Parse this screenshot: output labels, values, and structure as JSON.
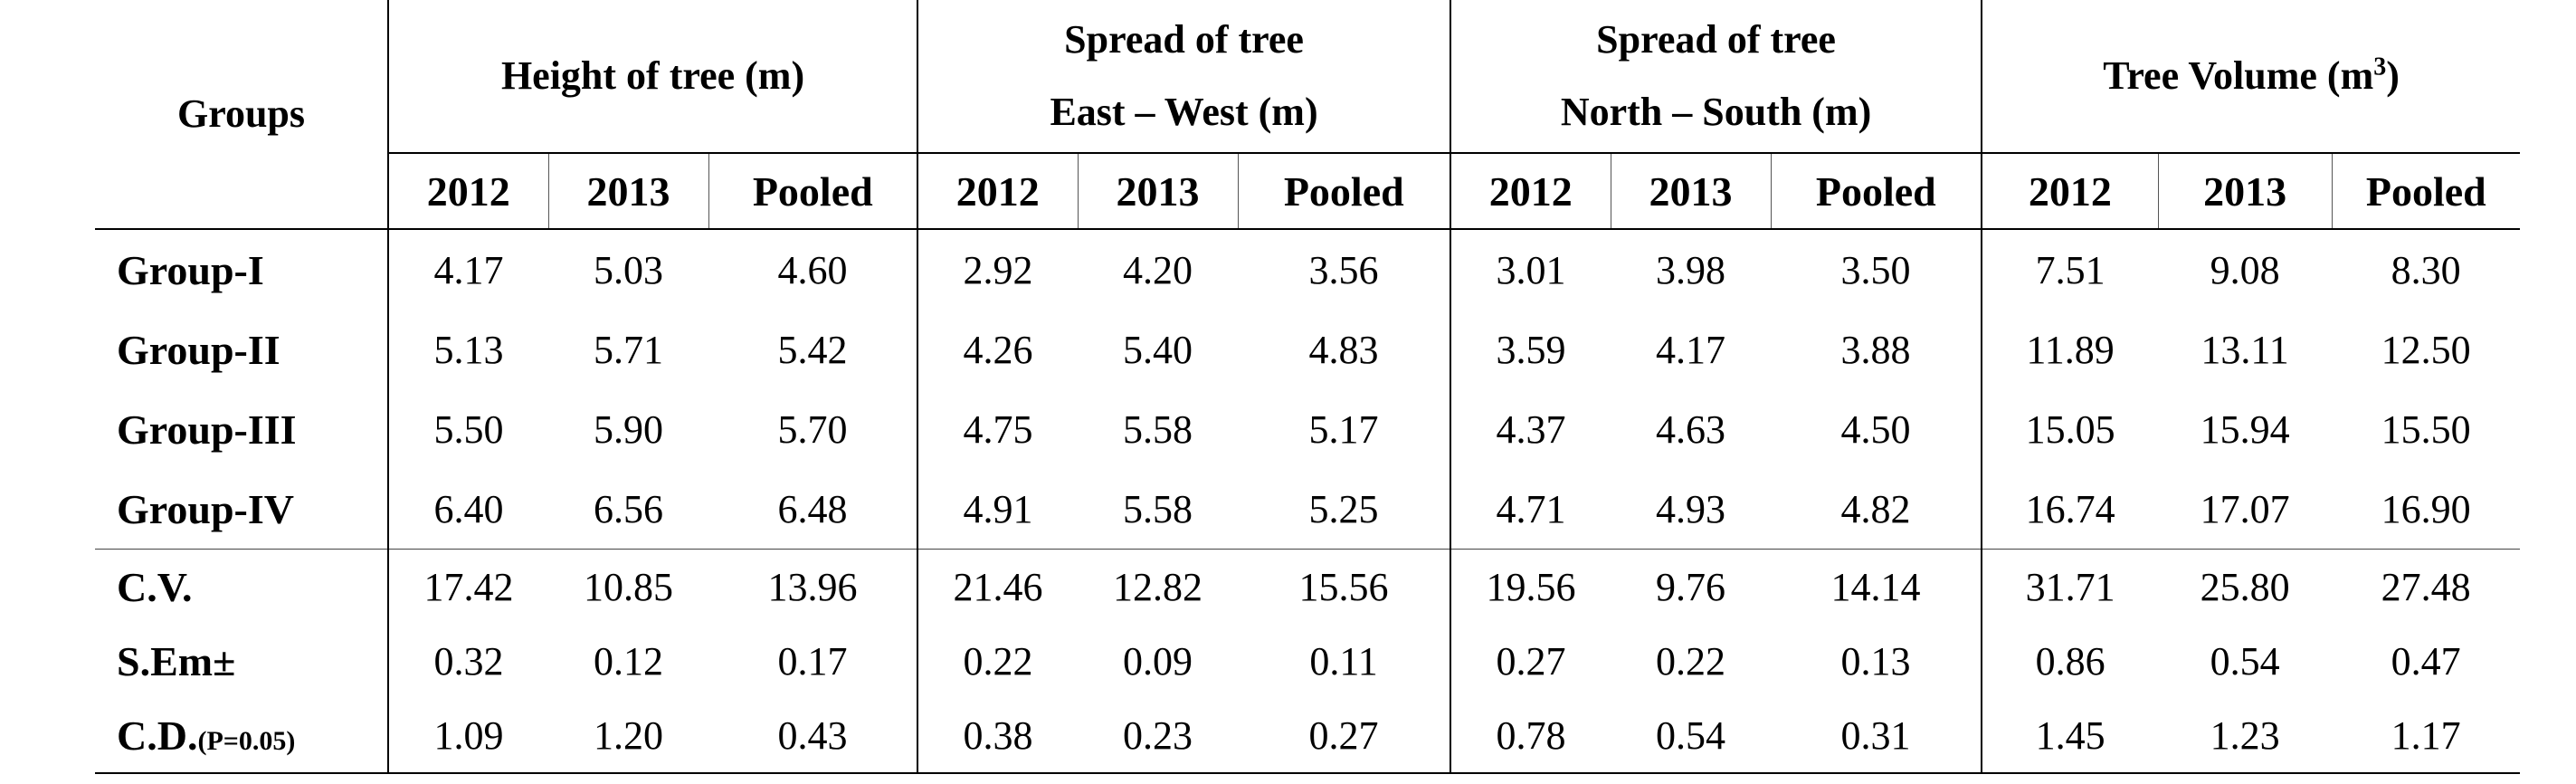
{
  "header": {
    "groups_label": "Groups",
    "col1": "Height of tree (m)",
    "col2_line1": "Spread of tree",
    "col2_line2": "East – West (m)",
    "col3_line1": "Spread of tree",
    "col3_line2": "North – South (m)",
    "col4_main": "Tree Volume (m",
    "col4_sup": "3",
    "col4_end": ")",
    "sub": [
      "2012",
      "2013",
      "Pooled"
    ]
  },
  "groups": [
    {
      "name": "Group-I",
      "values": [
        "4.17",
        "5.03",
        "4.60",
        "2.92",
        "4.20",
        "3.56",
        "3.01",
        "3.98",
        "3.50",
        "7.51",
        "9.08",
        "8.30"
      ]
    },
    {
      "name": "Group-II",
      "values": [
        "5.13",
        "5.71",
        "5.42",
        "4.26",
        "5.40",
        "4.83",
        "3.59",
        "4.17",
        "3.88",
        "11.89",
        "13.11",
        "12.50"
      ]
    },
    {
      "name": "Group-III",
      "values": [
        "5.50",
        "5.90",
        "5.70",
        "4.75",
        "5.58",
        "5.17",
        "4.37",
        "4.63",
        "4.50",
        "15.05",
        "15.94",
        "15.50"
      ]
    },
    {
      "name": "Group-IV",
      "values": [
        "6.40",
        "6.56",
        "6.48",
        "4.91",
        "5.58",
        "5.25",
        "4.71",
        "4.93",
        "4.82",
        "16.74",
        "17.07",
        "16.90"
      ]
    }
  ],
  "stats": [
    {
      "name": "C.V.",
      "name_sub": "",
      "values": [
        "17.42",
        "10.85",
        "13.96",
        "21.46",
        "12.82",
        "15.56",
        "19.56",
        "9.76",
        "14.14",
        "31.71",
        "25.80",
        "27.48"
      ]
    },
    {
      "name": "S.Em±",
      "name_sub": "",
      "values": [
        "0.32",
        "0.12",
        "0.17",
        "0.22",
        "0.09",
        "0.11",
        "0.27",
        "0.22",
        "0.13",
        "0.86",
        "0.54",
        "0.47"
      ]
    },
    {
      "name": "C.D.",
      "name_sub": "(P=0.05)",
      "values": [
        "1.09",
        "1.20",
        "0.43",
        "0.38",
        "0.23",
        "0.27",
        "0.78",
        "0.54",
        "0.31",
        "1.45",
        "1.23",
        "1.17"
      ]
    }
  ]
}
